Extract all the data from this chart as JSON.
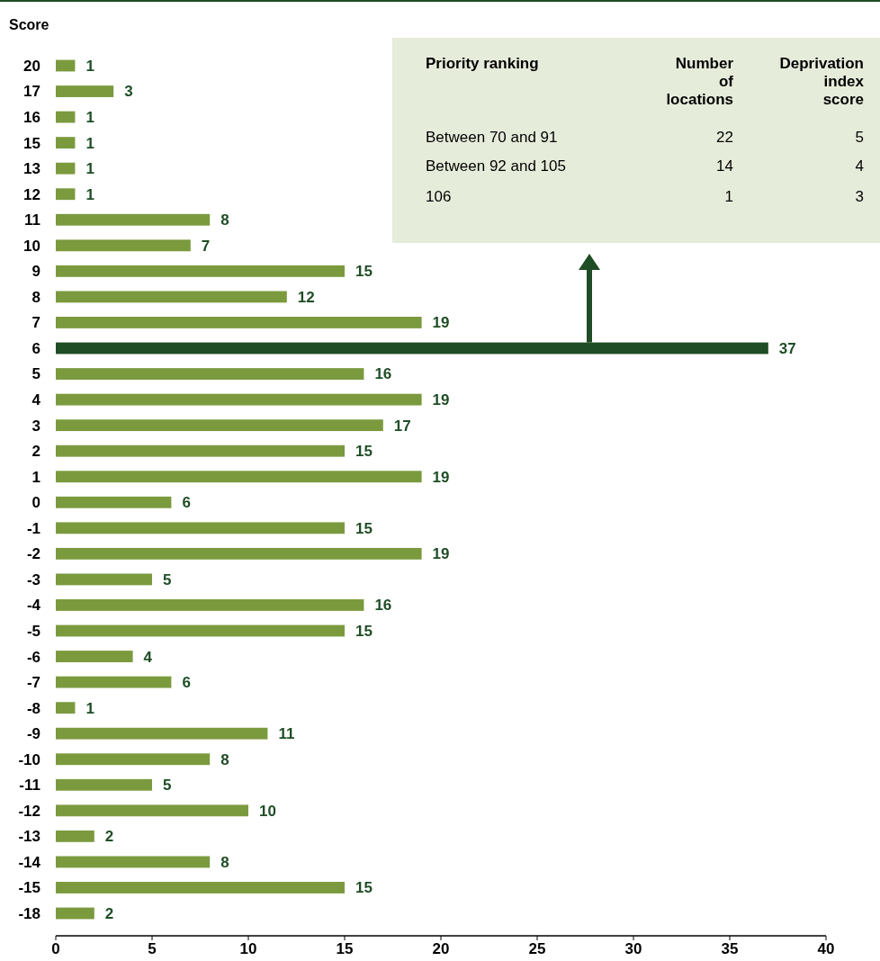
{
  "chart_data": {
    "type": "bar",
    "orientation": "horizontal",
    "ylabel": "Score",
    "categories": [
      "20",
      "17",
      "16",
      "15",
      "13",
      "12",
      "11",
      "10",
      "9",
      "8",
      "7",
      "6",
      "5",
      "4",
      "3",
      "2",
      "1",
      "0",
      "-1",
      "-2",
      "-3",
      "-4",
      "-5",
      "-6",
      "-7",
      "-8",
      "-9",
      "-10",
      "-11",
      "-12",
      "-13",
      "-14",
      "-15",
      "-18"
    ],
    "values": [
      1,
      3,
      1,
      1,
      1,
      1,
      8,
      7,
      15,
      12,
      19,
      37,
      16,
      19,
      17,
      15,
      19,
      6,
      15,
      19,
      5,
      16,
      15,
      4,
      6,
      1,
      11,
      8,
      5,
      10,
      2,
      8,
      15,
      2
    ],
    "colors": [
      "#7b9a3e",
      "#7b9a3e",
      "#7b9a3e",
      "#7b9a3e",
      "#7b9a3e",
      "#7b9a3e",
      "#7b9a3e",
      "#7b9a3e",
      "#7b9a3e",
      "#7b9a3e",
      "#7b9a3e",
      "#1f4d25",
      "#7b9a3e",
      "#7b9a3e",
      "#7b9a3e",
      "#7b9a3e",
      "#7b9a3e",
      "#7b9a3e",
      "#7b9a3e",
      "#7b9a3e",
      "#7b9a3e",
      "#7b9a3e",
      "#7b9a3e",
      "#7b9a3e",
      "#7b9a3e",
      "#7b9a3e",
      "#7b9a3e",
      "#7b9a3e",
      "#7b9a3e",
      "#7b9a3e",
      "#7b9a3e",
      "#7b9a3e",
      "#7b9a3e",
      "#7b9a3e"
    ],
    "xlim": [
      0,
      40
    ],
    "xticks": [
      0,
      5,
      10,
      15,
      20,
      25,
      30,
      35,
      40
    ],
    "data_labels": true,
    "annotations": [
      "Priority ranking",
      "Number of locations",
      "Deprivation index score",
      "Between 70 and 91",
      "22",
      "5",
      "Between 92 and 105",
      "14",
      "4",
      "106",
      "1",
      "3"
    ]
  }
}
